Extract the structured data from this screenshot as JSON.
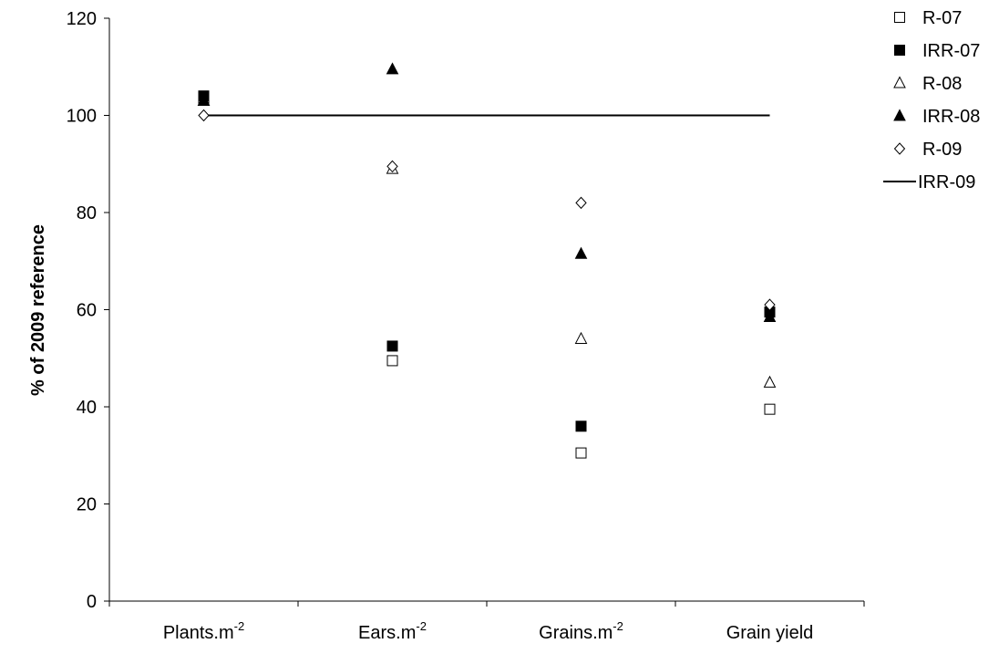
{
  "chart_data": {
    "type": "scatter",
    "title": "",
    "xlabel": "",
    "ylabel": "% of 2009 reference",
    "ylim": [
      0,
      120
    ],
    "yticks": [
      0,
      20,
      40,
      60,
      80,
      100,
      120
    ],
    "grid": false,
    "legend_position": "right",
    "categories": [
      {
        "base": "Plants.m",
        "sup": "-2"
      },
      {
        "base": "Ears.m",
        "sup": "-2"
      },
      {
        "base": "Grains.m",
        "sup": "-2"
      },
      {
        "base": "Grain yield",
        "sup": ""
      }
    ],
    "series": [
      {
        "name": "R-07",
        "marker": "square-open",
        "values": [
          103.5,
          49.5,
          30.5,
          39.5
        ]
      },
      {
        "name": "IRR-07",
        "marker": "square-filled",
        "values": [
          104,
          52.5,
          36,
          59.5
        ]
      },
      {
        "name": "R-08",
        "marker": "triangle-open",
        "values": [
          103,
          89,
          54,
          45
        ]
      },
      {
        "name": "IRR-08",
        "marker": "triangle-filled",
        "values": [
          103,
          109.5,
          71.5,
          58.5
        ]
      },
      {
        "name": "R-09",
        "marker": "diamond-open",
        "values": [
          100,
          89.5,
          82,
          61
        ]
      },
      {
        "name": "IRR-09",
        "marker": "line",
        "values": [
          100,
          100,
          100,
          100
        ]
      }
    ]
  }
}
